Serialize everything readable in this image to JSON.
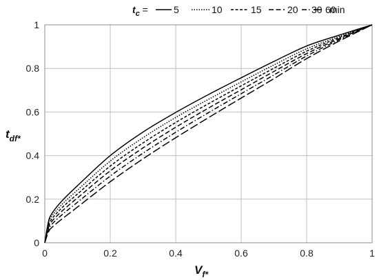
{
  "chart_data": {
    "type": "line",
    "xlabel": {
      "main": "V",
      "sub": "f*"
    },
    "ylabel": {
      "main": "t",
      "sub": "df*"
    },
    "xlim": [
      0,
      1
    ],
    "ylim": [
      0,
      1
    ],
    "xticks": [
      "0",
      "0.2",
      "0.4",
      "0.6",
      "0.8",
      "1"
    ],
    "yticks": [
      "0",
      "0.2",
      "0.4",
      "0.6",
      "0.8",
      "1"
    ],
    "grid": true,
    "legend": {
      "position": "top",
      "prefix_main": "t",
      "prefix_sub": "c",
      "prefix_suffix": " =",
      "unit": "min"
    },
    "x": [
      0,
      0.01,
      0.02,
      0.05,
      0.1,
      0.2,
      0.3,
      0.4,
      0.5,
      0.6,
      0.7,
      0.8,
      0.9,
      1.0
    ],
    "series": [
      {
        "name": "5",
        "dash": "solid",
        "values": [
          0,
          0.088,
          0.13,
          0.188,
          0.262,
          0.4,
          0.508,
          0.598,
          0.68,
          0.757,
          0.832,
          0.903,
          0.953,
          1.0
        ]
      },
      {
        "name": "10",
        "dash": "dotted",
        "values": [
          0,
          0.08,
          0.118,
          0.172,
          0.242,
          0.375,
          0.482,
          0.575,
          0.658,
          0.738,
          0.816,
          0.89,
          0.947,
          1.0
        ]
      },
      {
        "name": "15",
        "dash": "short",
        "values": [
          0,
          0.072,
          0.106,
          0.157,
          0.224,
          0.352,
          0.458,
          0.552,
          0.638,
          0.72,
          0.801,
          0.879,
          0.942,
          1.0
        ]
      },
      {
        "name": "20",
        "dash": "medium",
        "values": [
          0,
          0.064,
          0.095,
          0.142,
          0.206,
          0.33,
          0.435,
          0.53,
          0.618,
          0.702,
          0.786,
          0.868,
          0.937,
          1.0
        ]
      },
      {
        "name": "30",
        "dash": "dashdot",
        "values": [
          0,
          0.055,
          0.082,
          0.125,
          0.186,
          0.306,
          0.411,
          0.507,
          0.597,
          0.684,
          0.77,
          0.857,
          0.932,
          1.0
        ]
      },
      {
        "name": "60",
        "dash": "long",
        "values": [
          0,
          0.045,
          0.068,
          0.106,
          0.164,
          0.28,
          0.385,
          0.482,
          0.574,
          0.664,
          0.753,
          0.845,
          0.926,
          1.0
        ]
      }
    ]
  }
}
